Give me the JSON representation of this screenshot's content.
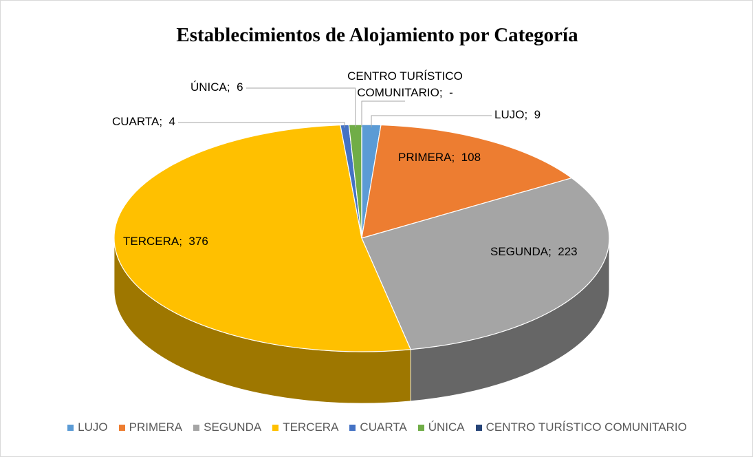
{
  "chart_data": {
    "type": "pie3d",
    "title": "Establecimientos de Alojamiento por Categoría",
    "categories": [
      "LUJO",
      "PRIMERA",
      "SEGUNDA",
      "TERCERA",
      "CUARTA",
      "ÚNICA",
      "CENTRO TURÍSTICO COMUNITARIO"
    ],
    "values": [
      9,
      108,
      223,
      376,
      4,
      6,
      0
    ],
    "value_labels": [
      "9",
      "108",
      "223",
      "376",
      "4",
      "6",
      "-"
    ],
    "label_separator": ";",
    "colors": [
      "#5b9bd5",
      "#ed7d31",
      "#a5a5a5",
      "#ffc000",
      "#4472c4",
      "#70ad47",
      "#264478"
    ],
    "legend": "bottom"
  }
}
